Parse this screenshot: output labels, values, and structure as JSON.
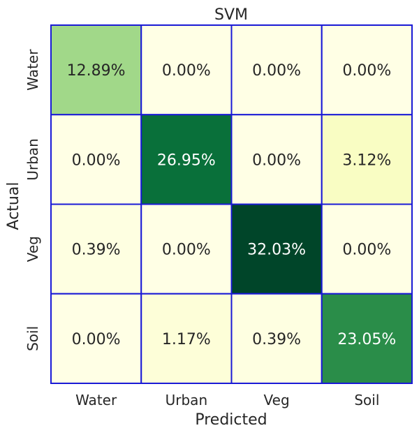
{
  "chart_data": {
    "type": "heatmap",
    "title": "SVM",
    "xlabel": "Predicted",
    "ylabel": "Actual",
    "x_categories": [
      "Water",
      "Urban",
      "Veg",
      "Soil"
    ],
    "y_categories": [
      "Water",
      "Urban",
      "Veg",
      "Soil"
    ],
    "values": [
      [
        12.89,
        0.0,
        0.0,
        0.0
      ],
      [
        0.0,
        26.95,
        0.0,
        3.12
      ],
      [
        0.39,
        0.0,
        32.03,
        0.0
      ],
      [
        0.0,
        1.17,
        0.39,
        23.05
      ]
    ],
    "value_labels": [
      [
        "12.89%",
        "0.00%",
        "0.00%",
        "0.00%"
      ],
      [
        "0.00%",
        "26.95%",
        "0.00%",
        "3.12%"
      ],
      [
        "0.39%",
        "0.00%",
        "32.03%",
        "0.00%"
      ],
      [
        "0.00%",
        "1.17%",
        "0.39%",
        "23.05%"
      ]
    ],
    "colormap": "YlGn",
    "value_range": [
      0,
      32.03
    ],
    "cell_border_color": "#1a1ad6",
    "colorbar": false
  }
}
